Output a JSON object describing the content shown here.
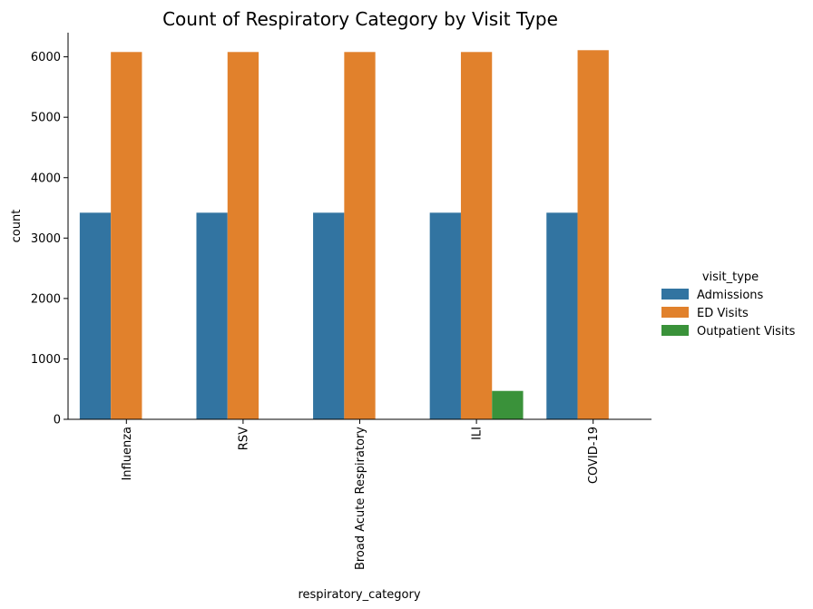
{
  "chart_data": {
    "type": "bar",
    "title": "Count of Respiratory Category by Visit Type",
    "xlabel": "respiratory_category",
    "ylabel": "count",
    "categories": [
      "Influenza",
      "RSV",
      "Broad Acute Respiratory",
      "ILI",
      "COVID-19"
    ],
    "series": [
      {
        "name": "Admissions",
        "color": "#3274a1",
        "values": [
          3420,
          3420,
          3420,
          3420,
          3420
        ]
      },
      {
        "name": "ED Visits",
        "color": "#e1812c",
        "values": [
          6080,
          6080,
          6080,
          6080,
          6110
        ]
      },
      {
        "name": "Outpatient Visits",
        "color": "#3a923a",
        "values": [
          0,
          0,
          0,
          470,
          0
        ]
      }
    ],
    "ylim": [
      0,
      6400
    ],
    "yticks": [
      0,
      1000,
      2000,
      3000,
      4000,
      5000,
      6000
    ],
    "legend": {
      "title": "visit_type",
      "position": "right"
    },
    "grid": false
  }
}
